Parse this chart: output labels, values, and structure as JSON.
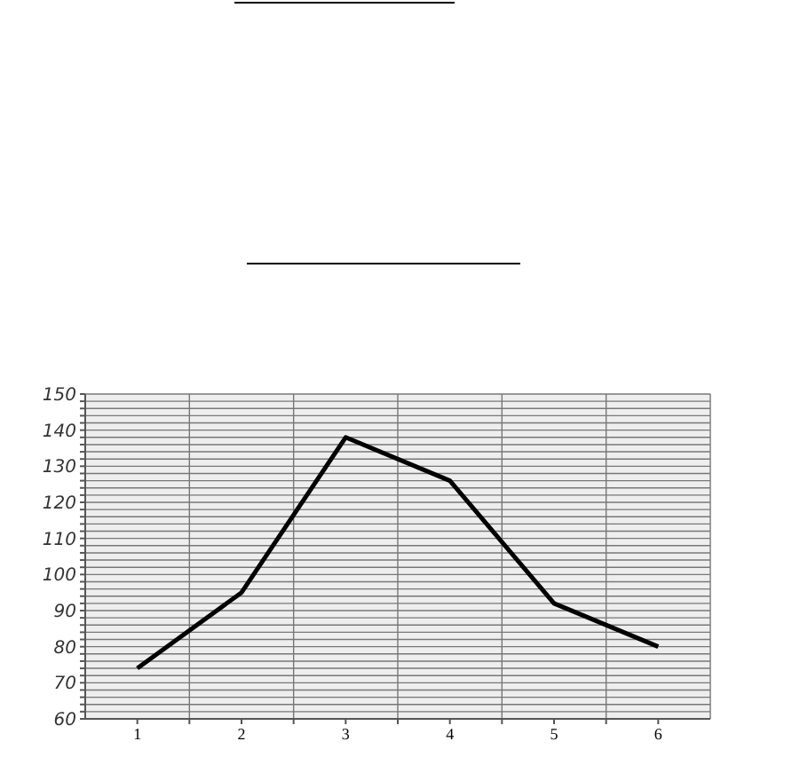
{
  "chart_data": {
    "type": "line",
    "x": [
      1,
      2,
      3,
      4,
      5,
      6
    ],
    "series": [
      {
        "color": "#000000",
        "values": [
          74,
          95,
          138,
          126,
          92,
          80
        ]
      }
    ],
    "xlim": [
      0.5,
      6.5
    ],
    "xticks": [
      1,
      {
        "value": 1.5,
        "label": null
      },
      2,
      {
        "value": 2.5,
        "label": null
      },
      3,
      {
        "value": 3.5,
        "label": null
      },
      4,
      {
        "value": 4.5,
        "label": null
      },
      5,
      {
        "value": 5.5,
        "label": null
      },
      6
    ],
    "ylim": [
      60,
      150
    ],
    "yticks": [
      60,
      {
        "value": 62,
        "label": null
      },
      {
        "value": 64,
        "label": null
      },
      {
        "value": 66,
        "label": null
      },
      {
        "value": 68,
        "label": null
      },
      70,
      {
        "value": 72,
        "label": null
      },
      {
        "value": 74,
        "label": null
      },
      {
        "value": 76,
        "label": null
      },
      {
        "value": 78,
        "label": null
      },
      80,
      {
        "value": 82,
        "label": null
      },
      {
        "value": 84,
        "label": null
      },
      {
        "value": 86,
        "label": null
      },
      {
        "value": 88,
        "label": null
      },
      90,
      {
        "value": 92,
        "label": null
      },
      {
        "value": 94,
        "label": null
      },
      {
        "value": 96,
        "label": null
      },
      {
        "value": 98,
        "label": null
      },
      100,
      {
        "value": 102,
        "label": null
      },
      {
        "value": 104,
        "label": null
      },
      {
        "value": 106,
        "label": null
      },
      {
        "value": 108,
        "label": null
      },
      110,
      {
        "value": 112,
        "label": null
      },
      {
        "value": 114,
        "label": null
      },
      {
        "value": 116,
        "label": null
      },
      {
        "value": 118,
        "label": null
      },
      120,
      {
        "value": 122,
        "label": null
      },
      {
        "value": 124,
        "label": null
      },
      {
        "value": 126,
        "label": null
      },
      {
        "value": 128,
        "label": null
      },
      130,
      {
        "value": 132,
        "label": null
      },
      {
        "value": 134,
        "label": null
      },
      {
        "value": 136,
        "label": null
      },
      {
        "value": 138,
        "label": null
      },
      140,
      {
        "value": 142,
        "label": null
      },
      {
        "value": 144,
        "label": null
      },
      {
        "value": 146,
        "label": null
      },
      {
        "value": 148,
        "label": null
      },
      150
    ],
    "grid": true,
    "marker": "none",
    "line_style": "solid"
  }
}
